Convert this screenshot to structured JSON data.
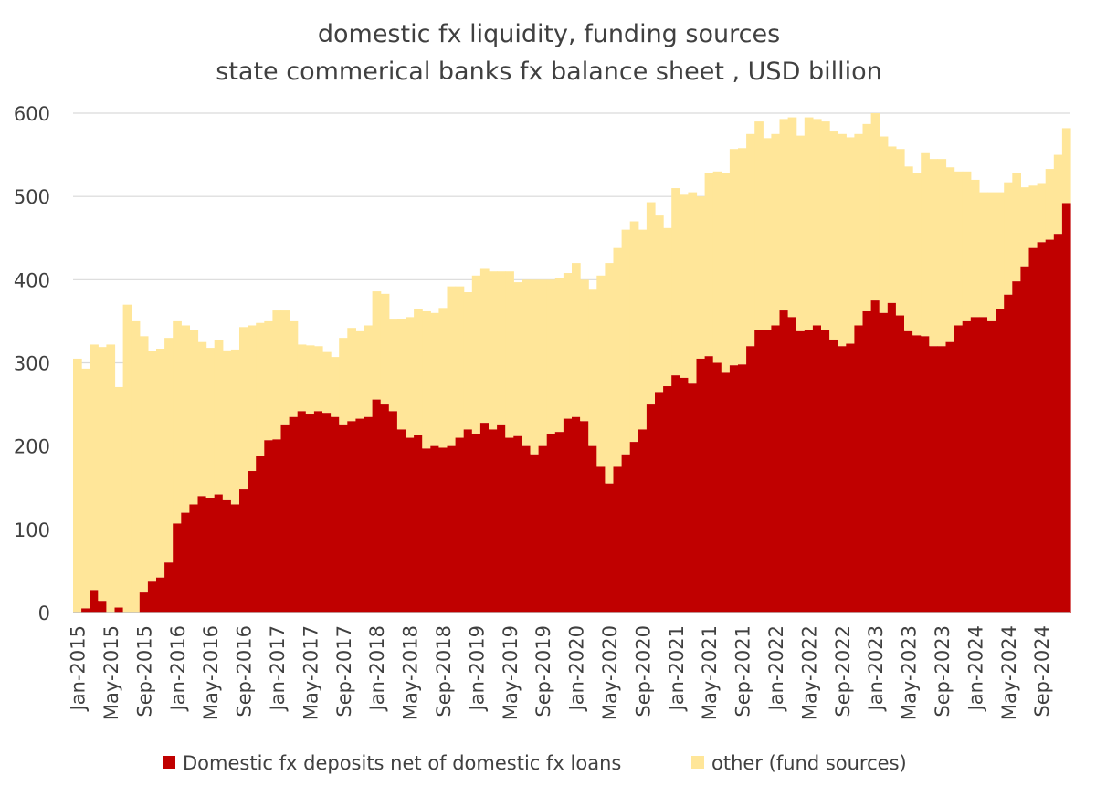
{
  "chart_data": {
    "type": "area",
    "stacked": true,
    "title": "domestic fx liquidity, funding sources",
    "subtitle": "state commerical banks fx balance sheet , USD billion",
    "xlabel": "",
    "ylabel": "",
    "ylim": [
      0,
      600
    ],
    "yticks": [
      0,
      100,
      200,
      300,
      400,
      500,
      600
    ],
    "grid": true,
    "legend_position": "bottom",
    "x_tick_labels": [
      "Jan-2015",
      "May-2015",
      "Sep-2015",
      "Jan-2016",
      "May-2016",
      "Sep-2016",
      "Jan-2017",
      "May-2017",
      "Sep-2017",
      "Jan-2018",
      "May-2018",
      "Sep-2018",
      "Jan-2019",
      "May-2019",
      "Sep-2019",
      "Jan-2020",
      "May-2020",
      "Sep-2020",
      "Jan-2021",
      "May-2021",
      "Sep-2021",
      "Jan-2022",
      "May-2022",
      "Sep-2022",
      "Jan-2023",
      "May-2023",
      "Sep-2023",
      "Jan-2024",
      "May-2024",
      "Sep-2024"
    ],
    "series": [
      {
        "name": "Domestic fx deposits net of domestic fx loans",
        "color": "#C00000",
        "values": [
          0,
          5,
          27,
          14,
          0,
          6,
          0,
          0,
          24,
          37,
          42,
          60,
          107,
          120,
          130,
          140,
          138,
          142,
          135,
          130,
          148,
          170,
          188,
          207,
          208,
          225,
          235,
          242,
          238,
          242,
          240,
          235,
          225,
          230,
          233,
          235,
          256,
          250,
          242,
          220,
          210,
          213,
          197,
          200,
          198,
          200,
          210,
          220,
          215,
          228,
          220,
          225,
          210,
          212,
          200,
          190,
          200,
          215,
          217,
          233,
          235,
          230,
          200,
          175,
          155,
          175,
          190,
          205,
          220,
          250,
          265,
          272,
          285,
          282,
          275,
          305,
          308,
          300,
          288,
          297,
          298,
          320,
          340,
          340,
          345,
          363,
          355,
          338,
          340,
          345,
          340,
          328,
          320,
          323,
          345,
          362,
          375,
          360,
          372,
          357,
          338,
          333,
          332,
          320,
          320,
          325,
          345,
          350,
          355,
          355,
          350,
          365,
          382,
          398,
          416,
          438,
          445,
          448,
          455,
          492
        ]
      },
      {
        "name": "other (fund sources)",
        "color": "#FFE699",
        "values": [
          305,
          288,
          295,
          305,
          322,
          265,
          370,
          350,
          308,
          277,
          275,
          270,
          243,
          225,
          210,
          185,
          180,
          185,
          180,
          186,
          195,
          175,
          160,
          143,
          155,
          138,
          115,
          80,
          83,
          78,
          73,
          72,
          105,
          112,
          105,
          110,
          130,
          133,
          110,
          133,
          145,
          152,
          165,
          160,
          168,
          192,
          182,
          165,
          190,
          185,
          190,
          185,
          200,
          185,
          200,
          210,
          200,
          185,
          185,
          175,
          185,
          170,
          188,
          230,
          265,
          263,
          270,
          265,
          240,
          243,
          212,
          190,
          225,
          220,
          230,
          195,
          220,
          230,
          240,
          260,
          260,
          255,
          250,
          230,
          230,
          230,
          240,
          235,
          255,
          248,
          250,
          250,
          255,
          248,
          230,
          225,
          225,
          212,
          188,
          200,
          198,
          195,
          220,
          225,
          225,
          210,
          185,
          180,
          165,
          150,
          155,
          140,
          135,
          130,
          95,
          75,
          70,
          85,
          95,
          90
        ]
      }
    ]
  }
}
